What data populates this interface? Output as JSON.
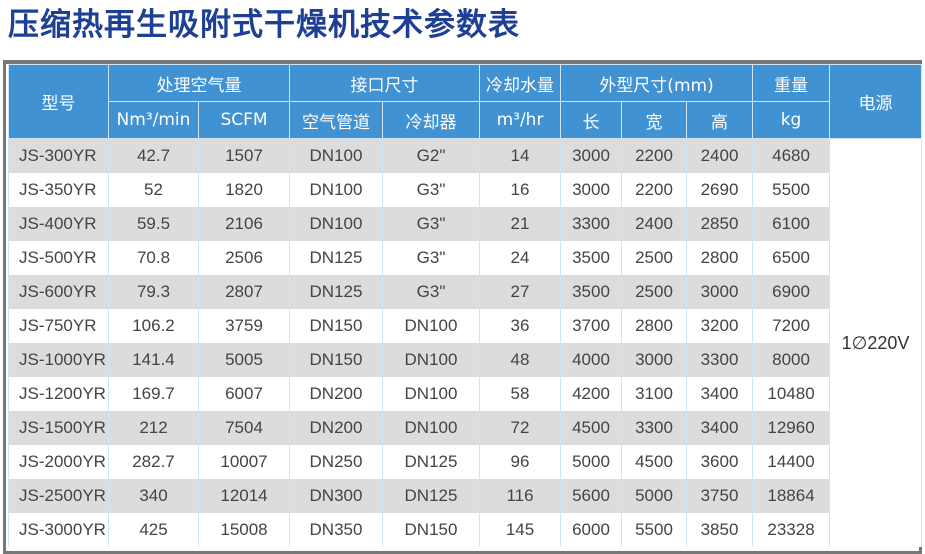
{
  "title": "压缩热再生吸附式干燥机技术参数表",
  "header": {
    "model": "型号",
    "air": "处理空气量",
    "port": "接口尺寸",
    "water": "冷却水量",
    "dims": "外型尺寸(mm)",
    "weight": "重量",
    "power": "电源",
    "sub": [
      "Nm³/min",
      "SCFM",
      "空气管道",
      "冷却器",
      "m³/hr",
      "长",
      "宽",
      "高",
      "kg"
    ]
  },
  "power_value": "1∅220V",
  "colors": {
    "title": "#1d3f94",
    "header": "#4192d2",
    "row_alt": "#dcdcdc"
  },
  "rows": [
    [
      "JS-300YR",
      "42.7",
      "1507",
      "DN100",
      "G2\"",
      "14",
      "3000",
      "2200",
      "2400",
      "4680"
    ],
    [
      "JS-350YR",
      "52",
      "1820",
      "DN100",
      "G3\"",
      "16",
      "3000",
      "2200",
      "2690",
      "5500"
    ],
    [
      "JS-400YR",
      "59.5",
      "2106",
      "DN100",
      "G3\"",
      "21",
      "3300",
      "2400",
      "2850",
      "6100"
    ],
    [
      "JS-500YR",
      "70.8",
      "2506",
      "DN125",
      "G3\"",
      "24",
      "3500",
      "2500",
      "2800",
      "6500"
    ],
    [
      "JS-600YR",
      "79.3",
      "2807",
      "DN125",
      "G3\"",
      "27",
      "3500",
      "2500",
      "3000",
      "6900"
    ],
    [
      "JS-750YR",
      "106.2",
      "3759",
      "DN150",
      "DN100",
      "36",
      "3700",
      "2800",
      "3200",
      "7200"
    ],
    [
      "JS-1000YR",
      "141.4",
      "5005",
      "DN150",
      "DN100",
      "48",
      "4000",
      "3000",
      "3300",
      "8000"
    ],
    [
      "JS-1200YR",
      "169.7",
      "6007",
      "DN200",
      "DN100",
      "58",
      "4200",
      "3100",
      "3400",
      "10480"
    ],
    [
      "JS-1500YR",
      "212",
      "7504",
      "DN200",
      "DN100",
      "72",
      "4500",
      "3300",
      "3400",
      "12960"
    ],
    [
      "JS-2000YR",
      "282.7",
      "10007",
      "DN250",
      "DN125",
      "96",
      "5000",
      "4500",
      "3600",
      "14400"
    ],
    [
      "JS-2500YR",
      "340",
      "12014",
      "DN300",
      "DN125",
      "116",
      "5600",
      "5000",
      "3750",
      "18864"
    ],
    [
      "JS-3000YR",
      "425",
      "15008",
      "DN350",
      "DN150",
      "145",
      "6000",
      "5500",
      "3850",
      "23328"
    ]
  ]
}
